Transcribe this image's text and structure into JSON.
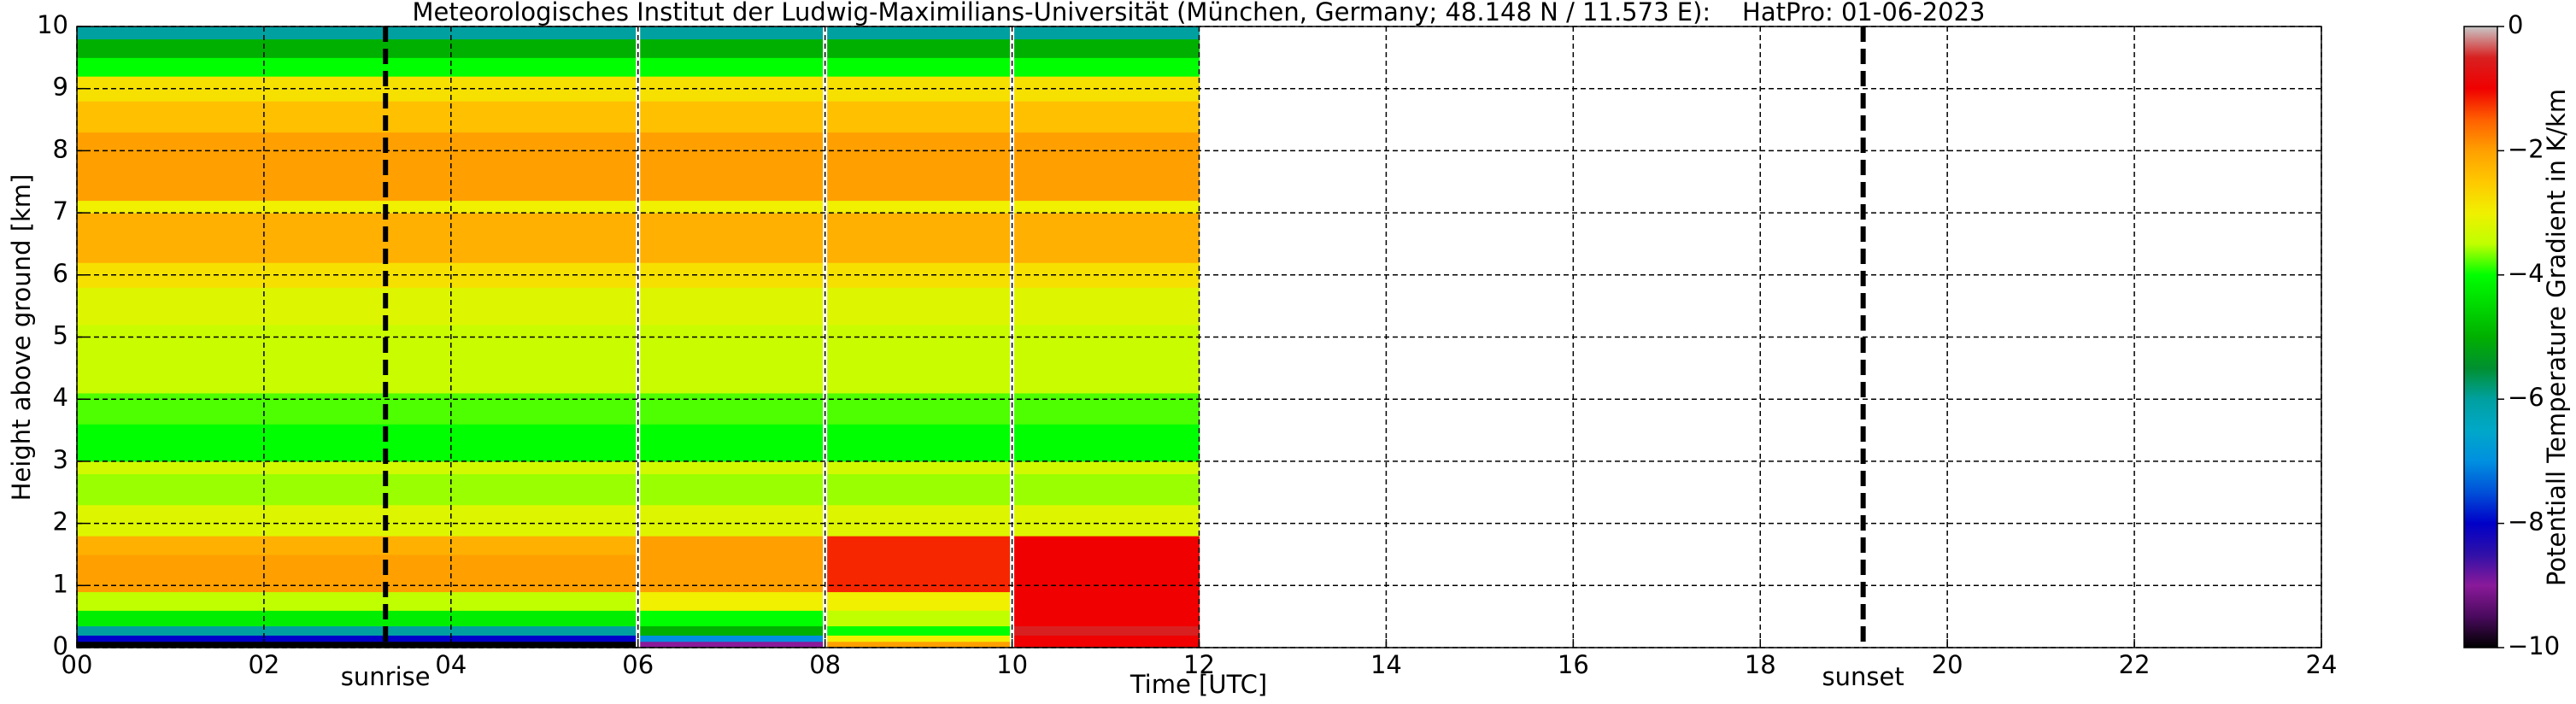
{
  "chart_data": {
    "type": "heatmap",
    "title": "Meteorologisches Institut der Ludwig-Maximilians-Universität (München, Germany; 48.148 N / 11.573 E):    HatPro: 01-06-2023",
    "xlabel": "Time [UTC]",
    "ylabel": "Height above ground [km]",
    "colorbar_label": "Potentiall Temperature Gradient in K/km",
    "xlim": [
      0,
      24
    ],
    "ylim": [
      0,
      10
    ],
    "xticks": [
      {
        "value": 0,
        "label": "00"
      },
      {
        "value": 2,
        "label": "02"
      },
      {
        "value": 4,
        "label": "04"
      },
      {
        "value": 6,
        "label": "06"
      },
      {
        "value": 8,
        "label": "08"
      },
      10,
      12,
      14,
      16,
      18,
      20,
      22,
      24
    ],
    "yticks": [
      0,
      1,
      2,
      3,
      4,
      5,
      6,
      7,
      8,
      9,
      10
    ],
    "grid": true,
    "clim": [
      -10,
      0
    ],
    "cticks": [
      0,
      {
        "value": -2,
        "label": "−2"
      },
      {
        "value": -4,
        "label": "−4"
      },
      {
        "value": -6,
        "label": "−6"
      },
      {
        "value": -8,
        "label": "−8"
      },
      {
        "value": -10,
        "label": "−10"
      }
    ],
    "colorscale": [
      [
        -10,
        "#000000"
      ],
      [
        -9.5,
        "#4a0a5e"
      ],
      [
        -9,
        "#8a1a9a"
      ],
      [
        -8.5,
        "#3010a8"
      ],
      [
        -8,
        "#0000c8"
      ],
      [
        -7.5,
        "#0050d8"
      ],
      [
        -7,
        "#0090e0"
      ],
      [
        -6.5,
        "#00a8c8"
      ],
      [
        -6,
        "#00a0a0"
      ],
      [
        -5.5,
        "#009030"
      ],
      [
        -5,
        "#00b000"
      ],
      [
        -4.5,
        "#00d800"
      ],
      [
        -4,
        "#00ff00"
      ],
      [
        -3.5,
        "#c0ff00"
      ],
      [
        -3,
        "#f0f000"
      ],
      [
        -2.5,
        "#ffc800"
      ],
      [
        -2,
        "#ffa000"
      ],
      [
        -1.5,
        "#ff6000"
      ],
      [
        -1,
        "#f00000"
      ],
      [
        -0.5,
        "#d82020"
      ],
      [
        0,
        "#c8c8c8"
      ]
    ],
    "x": [
      0,
      6,
      8,
      10,
      12
    ],
    "y": [
      0,
      0.1,
      0.2,
      0.35,
      0.6,
      0.9,
      1.5,
      1.8,
      2.3,
      2.8,
      3.0,
      3.6,
      4.1,
      5.2,
      5.8,
      6.2,
      7.0,
      7.2,
      8.3,
      8.8,
      9.2,
      9.5,
      9.8,
      10
    ],
    "z": [
      [
        -10,
        -9,
        -2,
        -1
      ],
      [
        -8,
        -7,
        -3,
        -1
      ],
      [
        -6,
        -5,
        -4,
        -0.5
      ],
      [
        -4.2,
        -4,
        -3.5,
        -1
      ],
      [
        -3.5,
        -3,
        -3,
        -1
      ],
      [
        -2,
        -2,
        -1.2,
        -1
      ],
      [
        -2.2,
        -2,
        -1.2,
        -1
      ],
      [
        -3.2,
        -3.2,
        -3.2,
        -3.2
      ],
      [
        -3.6,
        -3.6,
        -3.6,
        -3.6
      ],
      [
        -3.3,
        -3.3,
        -3.3,
        -3.3
      ],
      [
        -4,
        -4,
        -4,
        -4
      ],
      [
        -3.8,
        -3.8,
        -3.8,
        -3.8
      ],
      [
        -3.4,
        -3.4,
        -3.4,
        -3.4
      ],
      [
        -3.2,
        -3.2,
        -3.2,
        -3.2
      ],
      [
        -2.8,
        -2.8,
        -2.8,
        -2.8
      ],
      [
        -2.2,
        -2.2,
        -2.2,
        -2.2
      ],
      [
        -3,
        -3,
        -3,
        -3
      ],
      [
        -2,
        -2,
        -2,
        -2
      ],
      [
        -2.4,
        -2.4,
        -2.4,
        -2.4
      ],
      [
        -2.8,
        -2.8,
        -2.8,
        -2.8
      ],
      [
        -4,
        -4,
        -4,
        -4
      ],
      [
        -5,
        -5,
        -5,
        -5
      ],
      [
        -6,
        -6,
        -6,
        -6
      ]
    ],
    "events": [
      {
        "label": "sunrise",
        "x": 3.3
      },
      {
        "label": "sunset",
        "x": 19.1
      }
    ]
  }
}
